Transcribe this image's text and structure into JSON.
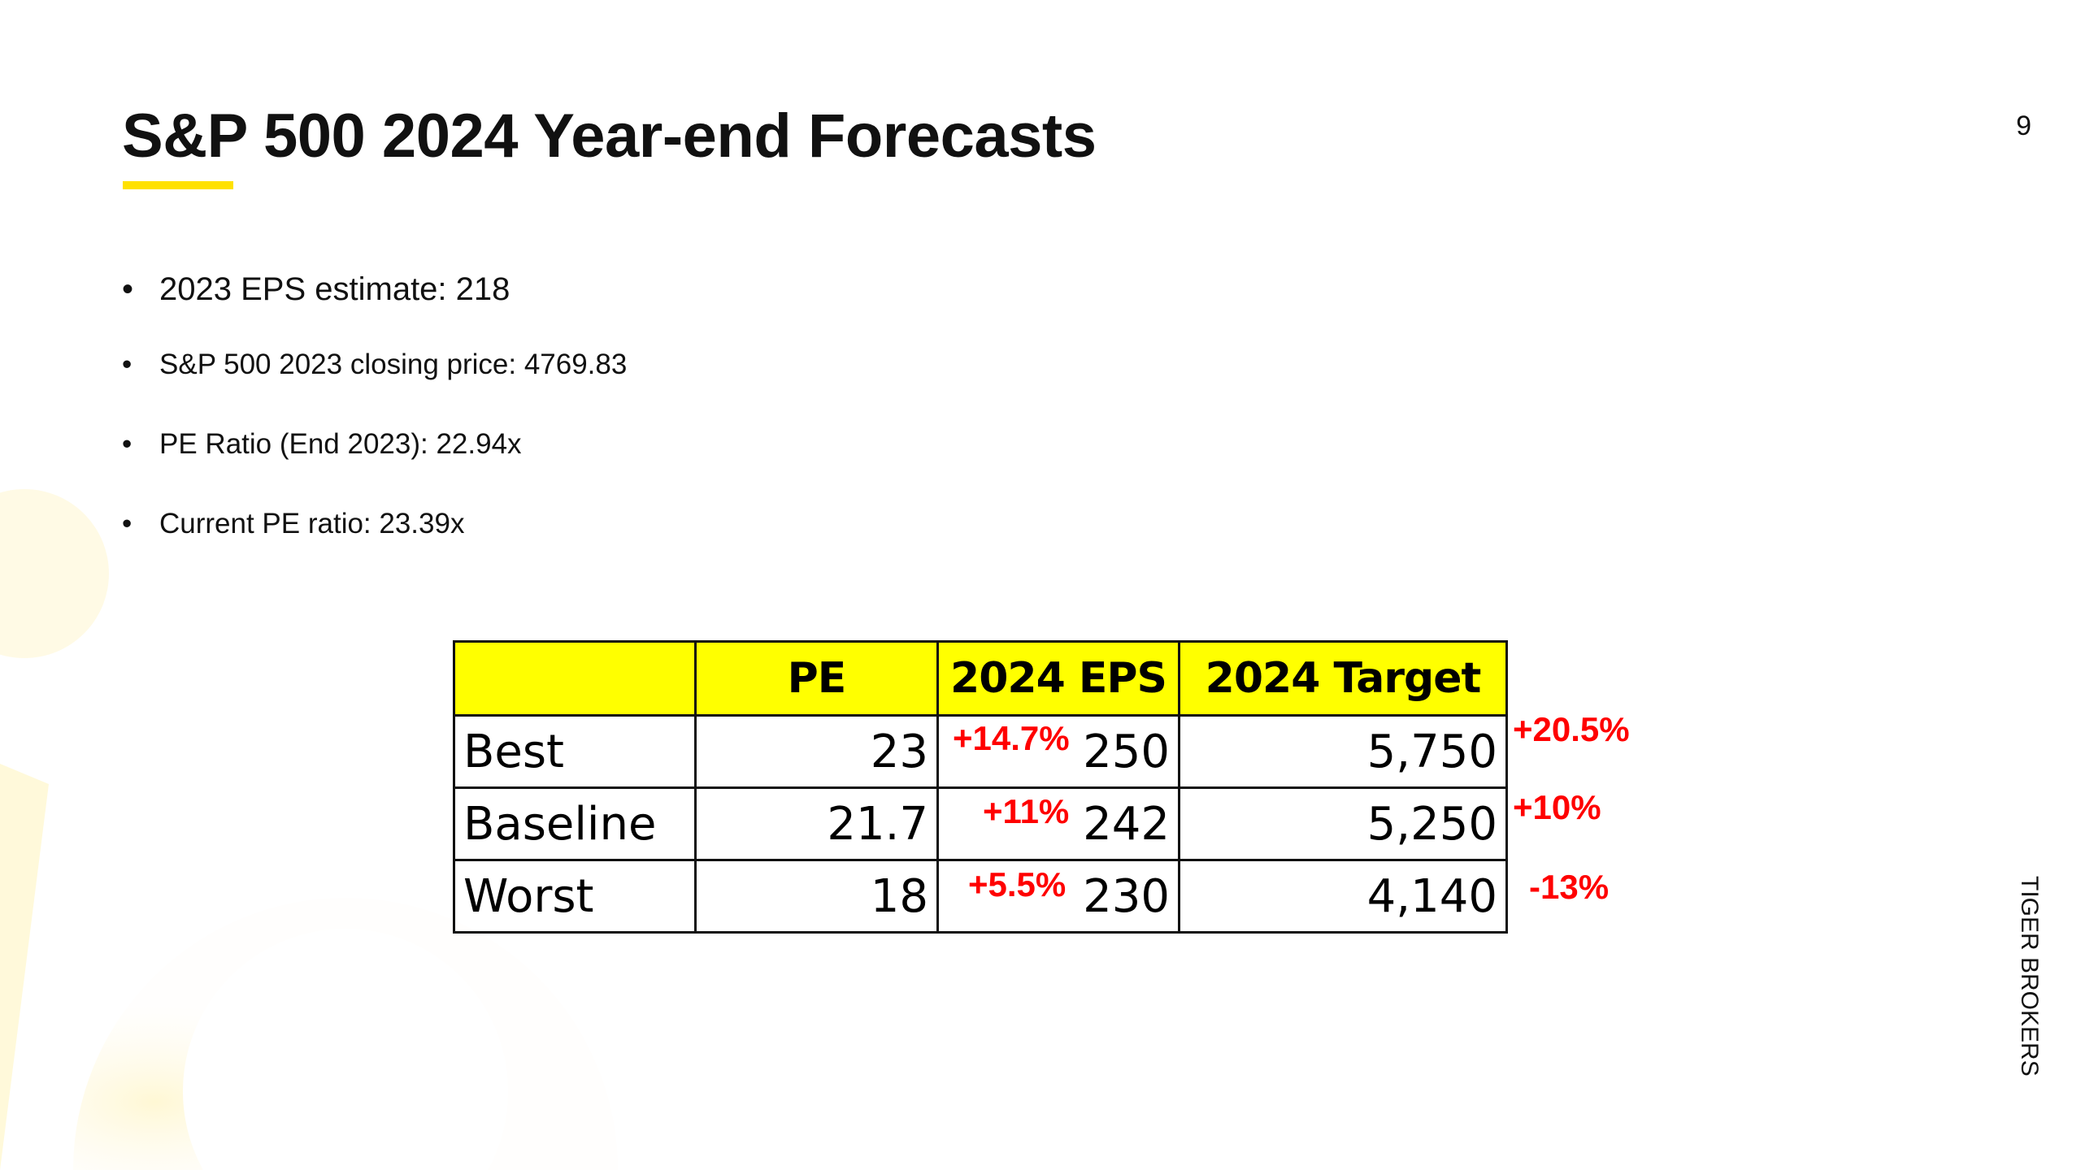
{
  "slide": {
    "title": "S&P 500 2024 Year-end Forecasts",
    "page_number": "9",
    "brand": "TIGER BROKERS",
    "accent_color": "#ffe100"
  },
  "bullets": [
    "2023 EPS estimate: 218",
    "S&P 500 2023 closing price: 4769.83",
    "PE Ratio (End 2023): 22.94x",
    "Current PE ratio: 23.39x"
  ],
  "table": {
    "headers": [
      "",
      "PE",
      "2024 EPS",
      "2024 Target"
    ],
    "header_fill": "#ffff00",
    "rows": [
      {
        "scenario": "Best",
        "pe": "23",
        "eps": "250",
        "target": "5,750",
        "eps_change": "+14.7%",
        "target_change": "+20.5%"
      },
      {
        "scenario": "Baseline",
        "pe": "21.7",
        "eps": "242",
        "target": "5,250",
        "eps_change": "+11%",
        "target_change": "+10%"
      },
      {
        "scenario": "Worst",
        "pe": "18",
        "eps": "230",
        "target": "4,140",
        "eps_change": "+5.5%",
        "target_change": "-13%"
      }
    ],
    "change_color": "#ff0000"
  }
}
